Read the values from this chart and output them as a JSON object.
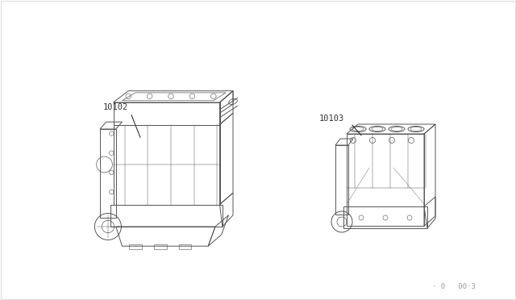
{
  "background_color": "#ffffff",
  "border_color": "#cccccc",
  "label_10102": "10102",
  "label_10103": "10103",
  "watermark": "· 0   00·3",
  "line_color": "#555555",
  "fig_width": 6.4,
  "fig_height": 3.72,
  "dpi": 100
}
